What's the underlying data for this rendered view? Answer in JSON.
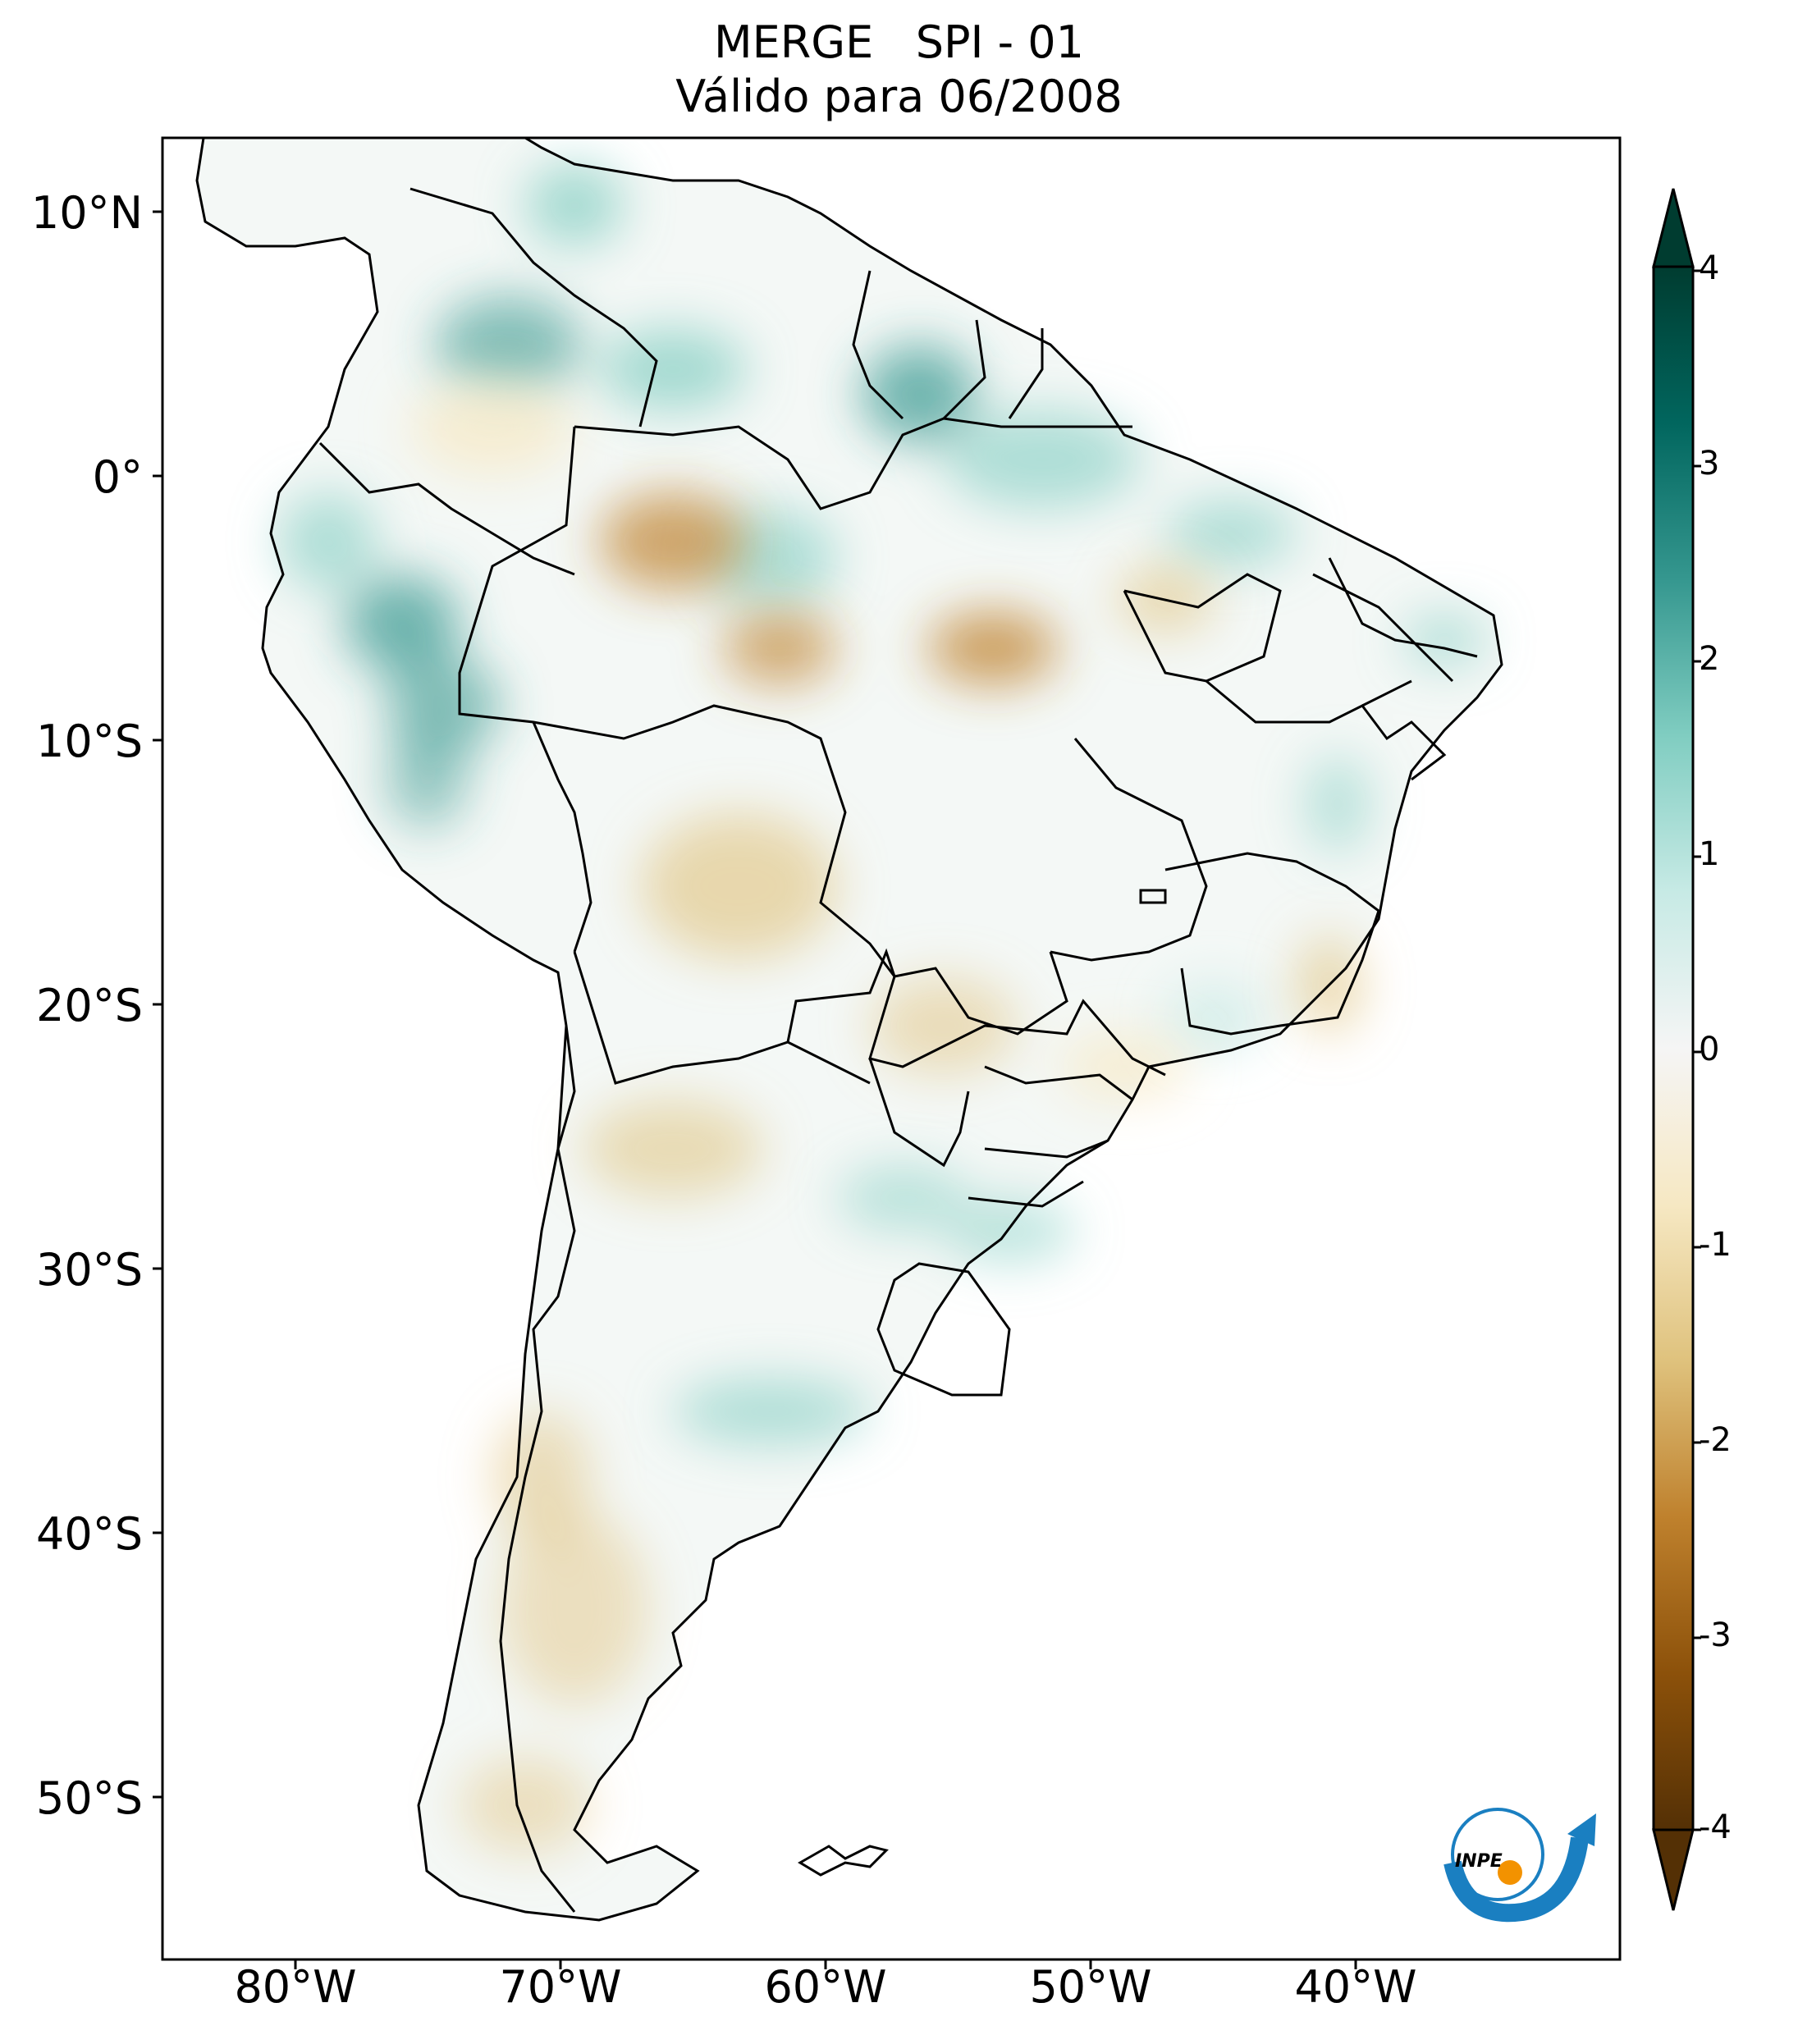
{
  "title": {
    "line1": "MERGE   SPI - 01",
    "line2": "Válido para 06/2008"
  },
  "map": {
    "lat_ticks": [
      {
        "label": "10°N",
        "lat": 10
      },
      {
        "label": "0°",
        "lat": 0
      },
      {
        "label": "10°S",
        "lat": -10
      },
      {
        "label": "20°S",
        "lat": -20
      },
      {
        "label": "30°S",
        "lat": -30
      },
      {
        "label": "40°S",
        "lat": -40
      },
      {
        "label": "50°S",
        "lat": -50
      }
    ],
    "lon_ticks": [
      {
        "label": "80°W",
        "lon": -80
      },
      {
        "label": "70°W",
        "lon": -70
      },
      {
        "label": "60°W",
        "lon": -60
      },
      {
        "label": "50°W",
        "lon": -50
      },
      {
        "label": "40°W",
        "lon": -40
      }
    ],
    "extent": {
      "lon_min": -85,
      "lon_max": -30,
      "lat_min": -56,
      "lat_max": 13
    }
  },
  "colorbar": {
    "ticks": [
      "4",
      "3",
      "2",
      "1",
      "0",
      "-1",
      "-2",
      "-3",
      "-4"
    ],
    "range": [
      -4,
      4
    ],
    "colors": {
      "dry_extreme": "#543005",
      "dry_strong": "#8c510a",
      "dry_moderate": "#bf812d",
      "dry_mild": "#dfc27d",
      "dry_slight": "#f6e8c3",
      "neutral": "#f5f5f5",
      "wet_slight": "#c7eae5",
      "wet_mild": "#80cdc1",
      "wet_moderate": "#35978f",
      "wet_strong": "#01665e",
      "wet_extreme": "#003c30"
    }
  },
  "logo": {
    "text": "INPE"
  }
}
